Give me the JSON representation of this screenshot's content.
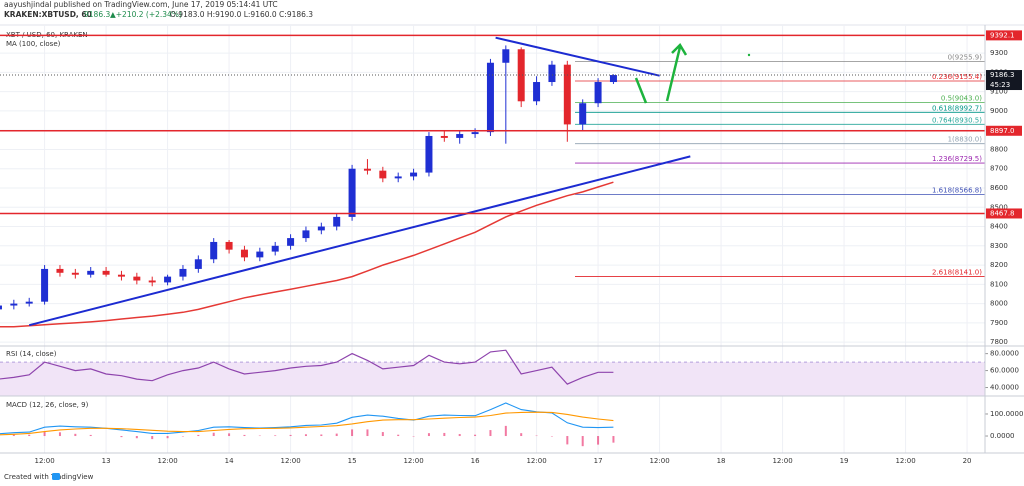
{
  "header": {
    "author_line": "aayushjindal published on TradingView.com, June 17, 2019 05:14:41 UTC",
    "symbol": "KRAKEN:XBTUSD, 60",
    "price": "9186.3",
    "change": "▲+210.2 (+2.34%)",
    "ohlc": "O:9183.0 H:9190.0 L:9160.0 C:9186.3"
  },
  "footer": "Created with TradingView",
  "chart_data": [
    {
      "type": "candlestick",
      "title": "XBT / USD, 60, KRAKEN",
      "up_color": "#1f2fd3",
      "down_color": "#e3262c",
      "x": [
        -21,
        -18,
        -15,
        -12,
        -9,
        -6,
        -3,
        0,
        3,
        6,
        9,
        12,
        15,
        18,
        21,
        24,
        27,
        30,
        33,
        36,
        39,
        42,
        45,
        48,
        51,
        54,
        57,
        60,
        63,
        66,
        69,
        72,
        75,
        78,
        81,
        84,
        87,
        90,
        93,
        96,
        99
      ],
      "open": [
        7970,
        7990,
        8000,
        8010,
        8180,
        8160,
        8150,
        8170,
        8150,
        8140,
        8120,
        8110,
        8140,
        8180,
        8230,
        8320,
        8280,
        8240,
        8270,
        8300,
        8340,
        8380,
        8400,
        8450,
        8700,
        8690,
        8650,
        8660,
        8680,
        8870,
        8860,
        8880,
        8890,
        9250,
        9320,
        9050,
        9150,
        9240,
        8930,
        9040,
        9150
      ],
      "high": [
        8010,
        8020,
        8030,
        8200,
        8200,
        8180,
        8190,
        8190,
        8170,
        8160,
        8140,
        8150,
        8200,
        8250,
        8340,
        8330,
        8300,
        8290,
        8320,
        8360,
        8400,
        8420,
        8470,
        8720,
        8750,
        8710,
        8680,
        8700,
        8890,
        8900,
        8900,
        8910,
        9270,
        9340,
        9330,
        9180,
        9260,
        9260,
        9060,
        9170,
        9190
      ],
      "low": [
        7950,
        7970,
        7985,
        7995,
        8140,
        8130,
        8135,
        8140,
        8120,
        8100,
        8090,
        8095,
        8120,
        8160,
        8210,
        8260,
        8220,
        8220,
        8250,
        8280,
        8320,
        8360,
        8380,
        8430,
        8670,
        8630,
        8630,
        8640,
        8660,
        8840,
        8830,
        8860,
        8870,
        8830,
        9020,
        9030,
        9130,
        8840,
        8900,
        9020,
        9140
      ],
      "close": [
        7990,
        8000,
        8010,
        8180,
        8160,
        8150,
        8170,
        8150,
        8140,
        8120,
        8110,
        8140,
        8180,
        8230,
        8320,
        8280,
        8240,
        8270,
        8300,
        8340,
        8380,
        8400,
        8450,
        8700,
        8690,
        8650,
        8660,
        8680,
        8870,
        8860,
        8880,
        8890,
        9250,
        9320,
        9050,
        9150,
        9240,
        8930,
        9040,
        9150,
        9186.3
      ],
      "series": [
        {
          "name": "MA (100, close)",
          "color": "#e53935",
          "values": [
            7880,
            7880,
            7885,
            7890,
            7895,
            7900,
            7905,
            7912,
            7920,
            7928,
            7935,
            7945,
            7955,
            7970,
            7990,
            8010,
            8030,
            8045,
            8060,
            8075,
            8090,
            8105,
            8120,
            8140,
            8170,
            8200,
            8225,
            8250,
            8280,
            8310,
            8340,
            8370,
            8410,
            8450,
            8480,
            8510,
            8535,
            8560,
            8580,
            8605,
            8630
          ]
        }
      ],
      "levels": [
        {
          "value": 9392.1,
          "label": "9392.1"
        },
        {
          "value": 8897.0,
          "label": "8897.0"
        },
        {
          "value": 8467.8,
          "label": "8467.8"
        }
      ],
      "level_color": "#e3262c",
      "last_price": 9186.3,
      "countdown": "45:23",
      "fib": [
        {
          "value": 9255.9,
          "label": "0(9255.9)",
          "color": "#888888"
        },
        {
          "value": 9155.4,
          "label": "0.236(9155.4)",
          "color": "#e3262c"
        },
        {
          "value": 9043.0,
          "label": "0.5(9043.0)",
          "color": "#4caf50"
        },
        {
          "value": 8992.7,
          "label": "0.618(8992.7)",
          "color": "#009688"
        },
        {
          "value": 8930.5,
          "label": "0.764(8930.5)",
          "color": "#26a69a"
        },
        {
          "value": 8830.0,
          "label": "1(8830.0)",
          "color": "#8fa0b0"
        },
        {
          "value": 8729.5,
          "label": "1.236(8729.5)",
          "color": "#9c27b0"
        },
        {
          "value": 8566.8,
          "label": "1.618(8566.8)",
          "color": "#3f51b5"
        },
        {
          "value": 8141.0,
          "label": "2.618(8141.0)",
          "color": "#e3262c"
        }
      ],
      "trendlines": [
        {
          "color": "#1c2bd1",
          "x": [
            -15,
            114
          ],
          "values": [
            7888,
            8764
          ]
        },
        {
          "color": "#1c2bd1",
          "x": [
            76,
            108
          ],
          "values": [
            9380,
            9183
          ]
        }
      ],
      "xlim": [
        -20.7,
        171.5
      ],
      "ylim": [
        7780,
        9420
      ],
      "xticks": [
        {
          "value": -12,
          "label": "12:00"
        },
        {
          "value": 0,
          "label": "13"
        },
        {
          "value": 12,
          "label": "12:00"
        },
        {
          "value": 24,
          "label": "14"
        },
        {
          "value": 36,
          "label": "12:00"
        },
        {
          "value": 48,
          "label": "15"
        },
        {
          "value": 60,
          "label": "12:00"
        },
        {
          "value": 72,
          "label": "16"
        },
        {
          "value": 84,
          "label": "12:00"
        },
        {
          "value": 96,
          "label": "17"
        },
        {
          "value": 108,
          "label": "12:00"
        },
        {
          "value": 120,
          "label": "18"
        },
        {
          "value": 132,
          "label": "12:00"
        },
        {
          "value": 144,
          "label": "19"
        },
        {
          "value": 156,
          "label": "12:00"
        },
        {
          "value": 168,
          "label": "20"
        }
      ],
      "yticks": [
        7800,
        7900,
        8000,
        8100,
        8200,
        8300,
        8400,
        8500,
        8600,
        8700,
        8800,
        8900,
        9000,
        9100,
        9200,
        9300
      ],
      "grid": true
    },
    {
      "type": "line",
      "title": "RSI (14, close)",
      "color": "#8e44ad",
      "values": [
        50,
        52,
        55,
        70,
        65,
        60,
        62,
        56,
        54,
        50,
        48,
        55,
        60,
        63,
        70,
        62,
        56,
        58,
        60,
        63,
        65,
        66,
        70,
        80,
        72,
        62,
        64,
        66,
        78,
        70,
        68,
        70,
        82,
        84,
        56,
        60,
        64,
        44,
        52,
        58,
        58
      ],
      "band": [
        30,
        70
      ],
      "band_color": "#f1e4f7",
      "ylim": [
        30,
        89
      ],
      "yticks": [
        {
          "value": 40,
          "label": "40.0000"
        },
        {
          "value": 60,
          "label": "60.0000"
        },
        {
          "value": 80,
          "label": "80.0000"
        }
      ]
    },
    {
      "type": "macd",
      "title": "MACD (12, 26, close, 9)",
      "series": [
        {
          "color": "#2196f3",
          "values": [
            10,
            15,
            18,
            40,
            45,
            42,
            40,
            35,
            28,
            20,
            12,
            12,
            18,
            25,
            40,
            42,
            38,
            36,
            38,
            42,
            48,
            50,
            58,
            85,
            95,
            90,
            80,
            72,
            90,
            95,
            93,
            92,
            120,
            150,
            120,
            110,
            105,
            60,
            40,
            38,
            40
          ]
        },
        {
          "color": "#ff9800",
          "values": [
            5,
            8,
            12,
            20,
            28,
            32,
            35,
            35,
            33,
            30,
            26,
            22,
            20,
            20,
            25,
            30,
            33,
            34,
            35,
            37,
            40,
            43,
            47,
            55,
            65,
            72,
            74,
            74,
            77,
            81,
            84,
            86,
            93,
            104,
            107,
            108,
            107,
            98,
            86,
            77,
            70
          ]
        }
      ],
      "histogram": {
        "color": "#e91e63",
        "values": [
          5,
          7,
          6,
          20,
          17,
          10,
          5,
          0,
          -5,
          -10,
          -14,
          -10,
          -2,
          5,
          15,
          12,
          5,
          2,
          3,
          5,
          8,
          7,
          11,
          30,
          30,
          18,
          6,
          -2,
          13,
          14,
          9,
          6,
          27,
          46,
          13,
          2,
          -2,
          -38,
          -46,
          -39,
          -30
        ]
      },
      "ylim": [
        -77,
        177
      ],
      "yticks": [
        {
          "value": 0,
          "label": "0.0000"
        },
        {
          "value": 100,
          "label": "100.0000"
        }
      ]
    }
  ]
}
